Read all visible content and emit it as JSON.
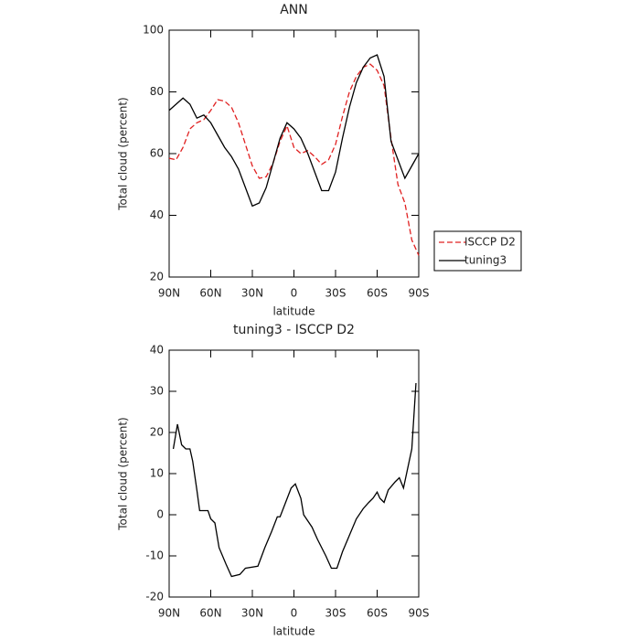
{
  "chart_data": [
    {
      "type": "line",
      "title": "ANN",
      "x_label": "latitude",
      "y_label": "Total cloud (percent)",
      "x": [
        90,
        85,
        80,
        75,
        70,
        65,
        60,
        55,
        50,
        45,
        40,
        35,
        30,
        25,
        20,
        15,
        10,
        5,
        0,
        -5,
        -10,
        -15,
        -20,
        -25,
        -30,
        -35,
        -40,
        -45,
        -50,
        -55,
        -60,
        -65,
        -70,
        -75,
        -80,
        -85,
        -90
      ],
      "series": [
        {
          "name": "ISCCP D2",
          "color": "#e02020",
          "dash": true,
          "values": [
            58.5,
            58,
            62,
            68,
            70,
            71,
            74,
            77.5,
            77,
            75,
            70,
            63,
            56,
            52,
            52.5,
            57,
            64,
            69,
            62,
            60,
            61,
            59,
            56.5,
            58,
            63,
            72,
            80,
            85,
            88,
            89,
            87,
            82,
            65,
            50,
            44,
            32,
            27
          ]
        },
        {
          "name": "tuning3",
          "color": "#000000",
          "dash": false,
          "values": [
            74,
            76,
            78,
            76,
            71.5,
            72.5,
            70,
            66,
            62,
            59,
            55,
            49,
            43,
            44,
            49,
            57,
            65,
            70,
            68,
            65,
            60,
            54,
            48,
            48,
            54,
            65,
            75,
            83,
            88,
            91,
            92,
            85,
            64,
            58,
            52,
            56,
            60
          ]
        }
      ],
      "xlim": [
        90,
        -90
      ],
      "xticks": [
        {
          "value": 90,
          "label": "90N"
        },
        {
          "value": 60,
          "label": "60N"
        },
        {
          "value": 30,
          "label": "30N"
        },
        0,
        {
          "value": -30,
          "label": "30S"
        },
        {
          "value": -60,
          "label": "60S"
        },
        {
          "value": -90,
          "label": "90S"
        }
      ],
      "ylim": [
        20,
        100
      ],
      "yticks": [
        20,
        40,
        60,
        80,
        100
      ],
      "legend": "right"
    },
    {
      "type": "line",
      "title": "tuning3 - ISCCP D2",
      "x_label": "latitude",
      "y_label": "Total cloud (percent)",
      "x": [
        87,
        84,
        81,
        78,
        75,
        73,
        70,
        68,
        62,
        60,
        57,
        54,
        49,
        45,
        39,
        35,
        26,
        21,
        16,
        12,
        10,
        6,
        2,
        -1,
        -5,
        -7,
        -13,
        -17,
        -23,
        -27,
        -31,
        -35,
        -40,
        -45,
        -50,
        -54,
        -57,
        -60,
        -62,
        -65,
        -68,
        -73,
        -76,
        -79,
        -85,
        -88
      ],
      "values": [
        16,
        22,
        17,
        16,
        16,
        13,
        6,
        1,
        1,
        -1,
        -2,
        -8,
        -12,
        -15,
        -14.5,
        -13,
        -12.5,
        -8,
        -4,
        -0.5,
        -0.5,
        3,
        6.5,
        7.5,
        4,
        0,
        -3,
        -6,
        -10,
        -13,
        -13,
        -9,
        -5,
        -1,
        1.5,
        3,
        4,
        5.5,
        4,
        3,
        6,
        8,
        9,
        6.5,
        16,
        32
      ],
      "color": "#000000",
      "xlim": [
        90,
        -90
      ],
      "xticks": [
        {
          "value": 90,
          "label": "90N"
        },
        {
          "value": 60,
          "label": "60N"
        },
        {
          "value": 30,
          "label": "30N"
        },
        0,
        {
          "value": -30,
          "label": "30S"
        },
        {
          "value": -60,
          "label": "60S"
        },
        {
          "value": -90,
          "label": "90S"
        }
      ],
      "ylim": [
        -20,
        40
      ],
      "yticks": [
        -20,
        -10,
        0,
        10,
        20,
        30,
        40
      ]
    }
  ]
}
